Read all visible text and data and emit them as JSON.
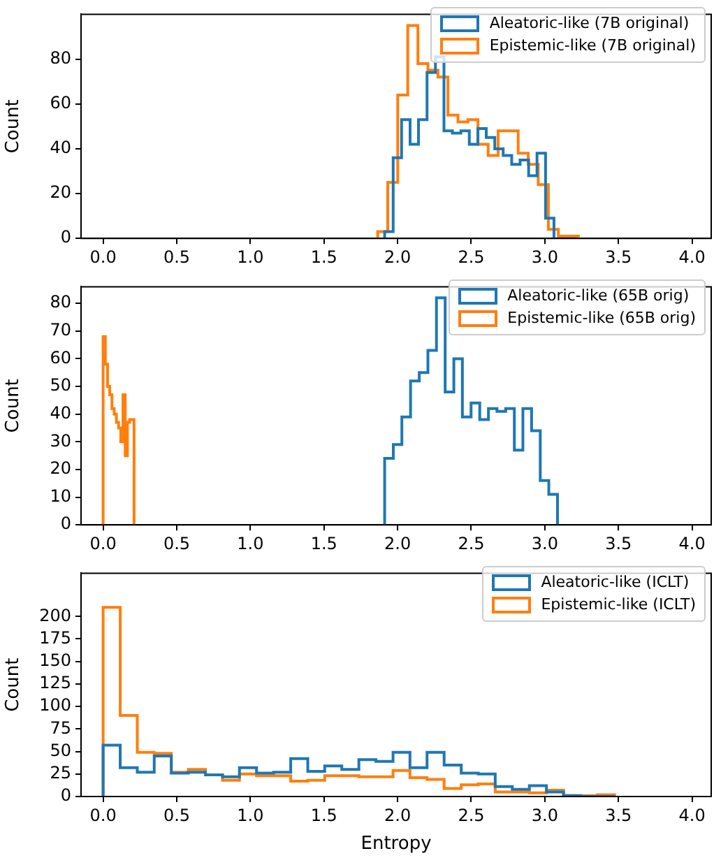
{
  "chart_data": [
    {
      "type": "histogram",
      "ylabel": "Count",
      "xlim": [
        -0.15,
        4.13
      ],
      "ylim": [
        0,
        100
      ],
      "xticks": [
        {
          "value": 0,
          "label": "0.0"
        },
        {
          "value": 0.5,
          "label": "0.5"
        },
        {
          "value": 1,
          "label": "1.0"
        },
        {
          "value": 1.5,
          "label": "1.5"
        },
        {
          "value": 2,
          "label": "2.0"
        },
        {
          "value": 2.5,
          "label": "2.5"
        },
        {
          "value": 3,
          "label": "3.0"
        },
        {
          "value": 3.5,
          "label": "3.5"
        },
        {
          "value": 4,
          "label": "4.0"
        }
      ],
      "yticks": [
        0,
        20,
        40,
        60,
        80
      ],
      "grid": false,
      "legend": "top right",
      "bins": [
        1.912,
        1.97,
        2.027,
        2.085,
        2.142,
        2.2,
        2.257,
        2.315,
        2.372,
        2.43,
        2.487,
        2.545,
        2.602,
        2.66,
        2.717,
        2.775,
        2.832,
        2.89,
        2.947,
        3.005,
        3.062
      ],
      "series": [
        {
          "name": "Aleatoric-like (7B original)",
          "color": "#1f77b4",
          "values": [
            3,
            36,
            53,
            42,
            53,
            74,
            81,
            48,
            47,
            48,
            42,
            49,
            45,
            40,
            37,
            33,
            35,
            28,
            38,
            9
          ]
        },
        {
          "name": "Epistemic-like (7B original)",
          "color": "#ff7f0e",
          "bins": [
            1.865,
            1.933,
            2.001,
            2.069,
            2.138,
            2.206,
            2.274,
            2.342,
            2.41,
            2.478,
            2.546,
            2.615,
            2.683,
            2.751,
            2.819,
            2.887,
            2.955,
            3.024,
            3.092,
            3.16,
            3.228
          ],
          "values": [
            3,
            25,
            64,
            95,
            78,
            75,
            72,
            55,
            52,
            53,
            42,
            37,
            48,
            48,
            38,
            33,
            24,
            4,
            1,
            1
          ]
        }
      ]
    },
    {
      "type": "histogram",
      "ylabel": "Count",
      "xlim": [
        -0.15,
        4.13
      ],
      "ylim": [
        0,
        86
      ],
      "xticks": [
        {
          "value": 0,
          "label": "0.0"
        },
        {
          "value": 0.5,
          "label": "0.5"
        },
        {
          "value": 1,
          "label": "1.0"
        },
        {
          "value": 1.5,
          "label": "1.5"
        },
        {
          "value": 2,
          "label": "2.0"
        },
        {
          "value": 2.5,
          "label": "2.5"
        },
        {
          "value": 3,
          "label": "3.0"
        },
        {
          "value": 3.5,
          "label": "3.5"
        },
        {
          "value": 4,
          "label": "4.0"
        }
      ],
      "yticks": [
        0,
        10,
        20,
        30,
        40,
        50,
        60,
        70,
        80
      ],
      "grid": false,
      "legend": "top right",
      "bins": [
        1.912,
        1.971,
        2.029,
        2.088,
        2.147,
        2.206,
        2.264,
        2.323,
        2.382,
        2.44,
        2.499,
        2.558,
        2.617,
        2.675,
        2.734,
        2.793,
        2.851,
        2.91,
        2.969,
        3.027,
        3.086
      ],
      "series": [
        {
          "name": "Aleatoric-like (65B orig)",
          "color": "#1f77b4",
          "values": [
            24,
            29,
            39,
            52,
            55,
            63,
            82,
            48,
            60,
            39,
            44,
            38,
            42,
            41,
            42,
            27,
            42,
            34,
            16,
            11
          ]
        },
        {
          "name": "Epistemic-like (65B orig)",
          "color": "#ff7f0e",
          "bins": [
            0,
            0.015,
            0.03,
            0.045,
            0.06,
            0.075,
            0.09,
            0.105,
            0.12,
            0.135,
            0.15,
            0.165,
            0.18,
            0.195,
            0.21
          ],
          "values": [
            68,
            58,
            50,
            47,
            42,
            40,
            37,
            35,
            30,
            47,
            25,
            37,
            38,
            38
          ]
        }
      ]
    },
    {
      "type": "histogram",
      "ylabel": "Count",
      "xlabel": "Entropy",
      "xlim": [
        -0.15,
        4.13
      ],
      "ylim": [
        0,
        248
      ],
      "xticks": [
        {
          "value": 0,
          "label": "0.0"
        },
        {
          "value": 0.5,
          "label": "0.5"
        },
        {
          "value": 1,
          "label": "1.0"
        },
        {
          "value": 1.5,
          "label": "1.5"
        },
        {
          "value": 2,
          "label": "2.0"
        },
        {
          "value": 2.5,
          "label": "2.5"
        },
        {
          "value": 3,
          "label": "3.0"
        },
        {
          "value": 3.5,
          "label": "3.5"
        },
        {
          "value": 4,
          "label": "4.0"
        }
      ],
      "yticks": [
        0,
        25,
        50,
        75,
        100,
        125,
        150,
        175,
        200
      ],
      "grid": false,
      "legend": "top right",
      "bins": [
        0,
        0.116,
        0.232,
        0.347,
        0.463,
        0.579,
        0.695,
        0.811,
        0.926,
        1.042,
        1.158,
        1.274,
        1.39,
        1.505,
        1.621,
        1.737,
        1.853,
        1.969,
        2.084,
        2.2,
        2.316,
        2.432,
        2.548,
        2.663,
        2.779,
        2.895,
        3.011,
        3.127,
        3.242,
        3.358,
        3.474
      ],
      "series": [
        {
          "name": "Aleatoric-like (ICLT)",
          "color": "#1f77b4",
          "values": [
            57,
            32,
            27,
            45,
            26,
            27,
            24,
            22,
            32,
            26,
            27,
            42,
            28,
            34,
            30,
            41,
            39,
            49,
            32,
            49,
            35,
            26,
            25,
            11,
            8,
            12,
            5,
            1,
            0,
            0
          ]
        },
        {
          "name": "Epistemic-like (ICLT)",
          "color": "#ff7f0e",
          "values": [
            210,
            90,
            49,
            48,
            27,
            30,
            24,
            18,
            25,
            23,
            23,
            17,
            18,
            23,
            23,
            22,
            22,
            29,
            21,
            19,
            9,
            13,
            14,
            5,
            5,
            4,
            7,
            1,
            1,
            2
          ]
        }
      ]
    }
  ]
}
